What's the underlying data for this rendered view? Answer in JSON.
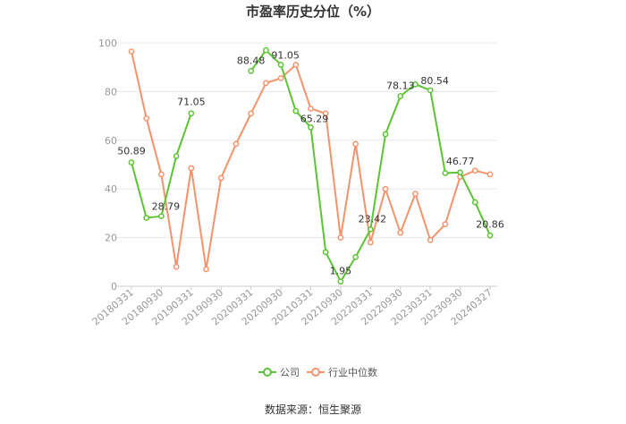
{
  "colors": {
    "company": "#5cc433",
    "industry": "#f4936b",
    "grid": "#e8e8e8",
    "axis": "#cccccc"
  },
  "chart_data": {
    "type": "line",
    "title": "市盈率历史分位（%）",
    "ylim": [
      0,
      100
    ],
    "yticks": [
      0,
      20,
      40,
      60,
      80,
      100
    ],
    "x_tick_labels": [
      "20180331",
      "20180930",
      "20190331",
      "20190930",
      "20200331",
      "20200930",
      "20210331",
      "20210930",
      "20220331",
      "20220930",
      "20230331",
      "20230930",
      "20240327"
    ],
    "x": [
      "20180331",
      "20180630",
      "20180930",
      "20181231",
      "20190331",
      "20190630",
      "20190930",
      "20191231",
      "20200331",
      "20200630",
      "20200930",
      "20201231",
      "20210331",
      "20210630",
      "20210930",
      "20211231",
      "20220331",
      "20220630",
      "20220930",
      "20221231",
      "20230331",
      "20230630",
      "20230930",
      "20231231",
      "20240327"
    ],
    "series": [
      {
        "name": "公司",
        "values": [
          50.89,
          28.1,
          28.79,
          53.5,
          71.05,
          null,
          null,
          null,
          88.48,
          97.0,
          91.05,
          72.0,
          65.29,
          14.0,
          1.95,
          12.0,
          23.42,
          62.5,
          78.13,
          83.0,
          80.54,
          46.5,
          46.77,
          34.5,
          20.86
        ]
      },
      {
        "name": "行业中位数",
        "values": [
          96.5,
          69.0,
          46.0,
          8.0,
          48.5,
          7.0,
          44.5,
          58.5,
          71.0,
          83.5,
          85.5,
          91.0,
          73.0,
          71.0,
          20.0,
          58.5,
          18.0,
          40.0,
          22.0,
          38.0,
          19.0,
          25.5,
          45.0,
          47.5,
          46.0
        ]
      }
    ],
    "data_labels": [
      {
        "series": 0,
        "index": 0,
        "text": "50.89"
      },
      {
        "series": 0,
        "index": 2,
        "text": "28.79"
      },
      {
        "series": 0,
        "index": 4,
        "text": "71.05"
      },
      {
        "series": 0,
        "index": 8,
        "text": "88.48"
      },
      {
        "series": 0,
        "index": 10,
        "text": "91.05"
      },
      {
        "series": 0,
        "index": 12,
        "text": "65.29"
      },
      {
        "series": 0,
        "index": 14,
        "text": "1.95"
      },
      {
        "series": 0,
        "index": 16,
        "text": "23.42"
      },
      {
        "series": 0,
        "index": 18,
        "text": "78.13"
      },
      {
        "series": 0,
        "index": 20,
        "text": "80.54"
      },
      {
        "series": 0,
        "index": 22,
        "text": "46.77"
      },
      {
        "series": 0,
        "index": 24,
        "text": "20.86"
      }
    ],
    "legend_position": "bottom-center",
    "grid": true
  },
  "footer": {
    "source": "数据来源：恒生聚源"
  }
}
